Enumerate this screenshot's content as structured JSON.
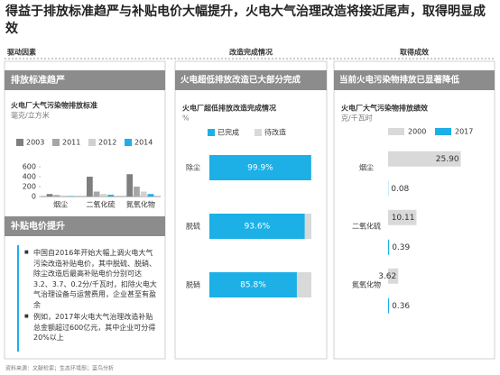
{
  "header": {
    "title": "得益于排放标准趋严与补贴电价大幅提升，火电大气治理改造将接近尾声，取得明显成效"
  },
  "columns": [
    "驱动因素",
    "改造完成情况",
    "取得成效"
  ],
  "panels": [
    "排放标准趋严",
    "补贴电价提升",
    "火电超低排放改造已大部分完成",
    "当前火电污染物排放已显著降低"
  ],
  "bullets": [
    "中国自2016年开始大幅上调火电大气污染改造补贴电价，其中脱硫、脱硝、除尘改造后最高补贴电价分别可达3.2、3.7、0.2分/千瓦时，扣除火电大气治理设备与运营费用，企业甚至有盈余",
    "例如，2017年火电大气治理改造补贴总金额超过600亿元，其中企业可分得20%以上"
  ],
  "source": "资料来源：文献检索；生态环境部；蓝鸟分析",
  "chart_data": [
    {
      "type": "bar",
      "title": "火电厂大气污染物排放标准",
      "subtitle": "毫克/立方米",
      "categories": [
        "烟尘",
        "二氧化硫",
        "氮氧化物"
      ],
      "series": [
        {
          "name": "2003",
          "color": "#7f7f7f",
          "values": [
            50,
            400,
            450
          ]
        },
        {
          "name": "2011",
          "color": "#a6a6a6",
          "values": [
            30,
            100,
            200
          ]
        },
        {
          "name": "2012",
          "color": "#d0d0d0",
          "values": [
            20,
            50,
            100
          ]
        },
        {
          "name": "2014",
          "color": "#1cb0e6",
          "values": [
            10,
            35,
            50
          ]
        }
      ],
      "ylim": [
        0,
        600
      ],
      "yticks": [
        0,
        200,
        400,
        600
      ]
    },
    {
      "type": "bar",
      "orientation": "horizontal",
      "stacked": true,
      "title": "火电厂超低排放改造完成情况",
      "subtitle": "%",
      "categories": [
        "除尘",
        "脱硫",
        "脱硝"
      ],
      "series": [
        {
          "name": "已完成",
          "color": "#1cb0e6",
          "values": [
            99.9,
            93.6,
            85.8
          ],
          "value_labels": [
            "99.9%",
            "93.6%",
            "85.8%"
          ]
        },
        {
          "name": "待改造",
          "color": "#d9d9d9",
          "values": [
            0.1,
            6.4,
            14.2
          ]
        }
      ],
      "xlim": [
        0,
        100
      ]
    },
    {
      "type": "bar",
      "orientation": "horizontal",
      "title": "火电厂大气污染物排放绩效",
      "subtitle": "克/千瓦时",
      "categories": [
        "烟尘",
        "二氧化硫",
        "氮氧化物"
      ],
      "series": [
        {
          "name": "2000",
          "color": "#d9d9d9",
          "values": [
            25.9,
            10.11,
            3.62
          ],
          "value_labels": [
            "25.90",
            "10.11",
            "3.62"
          ]
        },
        {
          "name": "2017",
          "color": "#1cb0e6",
          "values": [
            0.08,
            0.39,
            0.36
          ],
          "value_labels": [
            "0.08",
            "0.39",
            "0.36"
          ]
        }
      ],
      "xlim": [
        0,
        27
      ]
    }
  ]
}
